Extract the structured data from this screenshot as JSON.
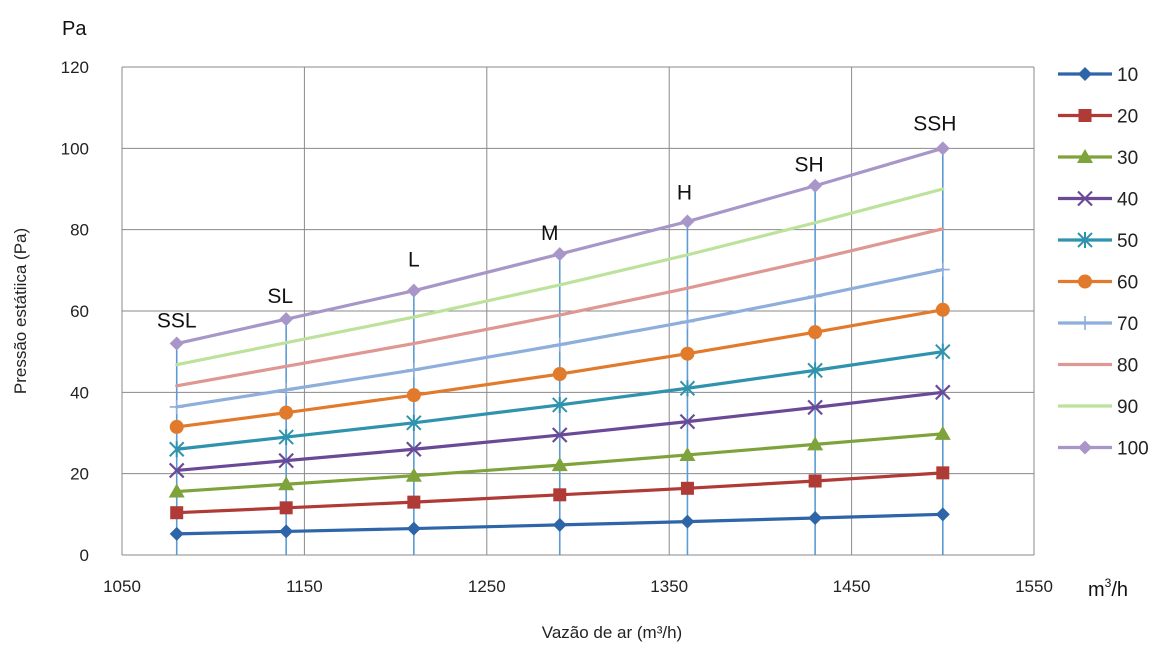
{
  "chart_data": {
    "type": "line",
    "title": "",
    "xlabel": "Vazão de ar (m³/h)",
    "ylabel": "Pressão estátiica (Pa)",
    "x_unit": "m³/h",
    "y_unit": "Pa",
    "xlim": [
      1050,
      1550
    ],
    "ylim": [
      0,
      120
    ],
    "x_ticks": [
      "1050",
      "1150",
      "1250",
      "1350",
      "1450",
      "1550"
    ],
    "y_ticks": [
      "0",
      "20",
      "40",
      "60",
      "80",
      "100",
      "120"
    ],
    "grid": true,
    "legend_position": "right",
    "x": [
      1080,
      1140,
      1210,
      1290,
      1360,
      1430,
      1500
    ],
    "speed_labels": [
      "SSL",
      "SL",
      "L",
      "M",
      "H",
      "SH",
      "SSH"
    ],
    "vertical_lines_color": "#5b9bd5",
    "series": [
      {
        "name": "10",
        "color": "#2e64a8",
        "marker": "diamond",
        "values": [
          5.2,
          5.8,
          6.5,
          7.4,
          8.2,
          9.1,
          10
        ]
      },
      {
        "name": "20",
        "color": "#b03a35",
        "marker": "square",
        "values": [
          10.4,
          11.6,
          13,
          14.8,
          16.4,
          18.2,
          20.2
        ]
      },
      {
        "name": "30",
        "color": "#7ea33a",
        "marker": "triangle",
        "values": [
          15.6,
          17.4,
          19.5,
          22.1,
          24.6,
          27.2,
          29.8
        ]
      },
      {
        "name": "40",
        "color": "#6a4a96",
        "marker": "x",
        "values": [
          20.8,
          23.2,
          26,
          29.5,
          32.8,
          36.3,
          40
        ]
      },
      {
        "name": "50",
        "color": "#2f93ad",
        "marker": "star",
        "values": [
          26,
          29,
          32.5,
          36.9,
          41,
          45.4,
          50
        ]
      },
      {
        "name": "60",
        "color": "#e27a2b",
        "marker": "circle",
        "values": [
          31.5,
          35,
          39.3,
          44.5,
          49.5,
          54.8,
          60.3
        ]
      },
      {
        "name": "70",
        "color": "#8eaedc",
        "marker": "plus",
        "values": [
          36.4,
          40.6,
          45.5,
          51.7,
          57.4,
          63.6,
          70.2
        ]
      },
      {
        "name": "80",
        "color": "#de9793",
        "marker": "none",
        "values": [
          41.6,
          46.4,
          52,
          59,
          65.6,
          72.7,
          80.2
        ]
      },
      {
        "name": "90",
        "color": "#bde29b",
        "marker": "none",
        "values": [
          46.8,
          52.2,
          58.5,
          66.4,
          73.8,
          81.7,
          90
        ]
      },
      {
        "name": "100",
        "color": "#a996c8",
        "marker": "diamond",
        "values": [
          52,
          58,
          65,
          74,
          82,
          90.8,
          100
        ]
      }
    ]
  }
}
